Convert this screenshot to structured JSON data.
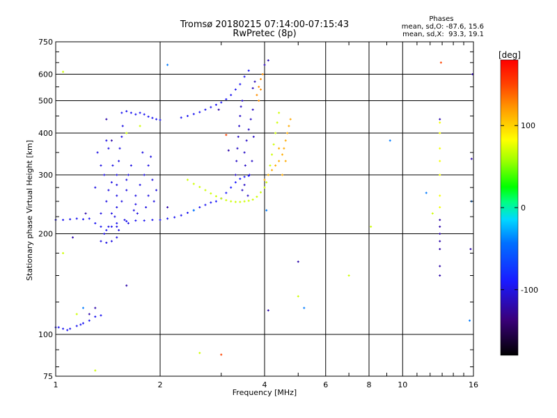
{
  "chart_data": {
    "type": "scatter",
    "title": "Tromsø 20180215 07:14:00-07:15:43",
    "subtitle": "RwPretec (8p)",
    "xlabel": "Frequency [MHz]",
    "ylabel": "Stationary phase Virtual Height [km]",
    "xscale": "log",
    "yscale": "log",
    "xlim": [
      1,
      16
    ],
    "ylim": [
      75,
      750
    ],
    "xticks": [
      1,
      2,
      4,
      6,
      8,
      10,
      16
    ],
    "yticks": [
      75,
      100,
      200,
      300,
      400,
      500,
      600,
      750
    ],
    "grid": true,
    "stats": {
      "heading": "Phases",
      "line1": "mean, sd,O: -87.6, 15.6",
      "line2": "mean, sd,X:  93.3, 19.1"
    },
    "colorbar": {
      "label": "[deg]",
      "range": [
        -180,
        180
      ],
      "ticks": [
        -100,
        0,
        100
      ],
      "tick_labels": [
        "-100",
        "0",
        "100"
      ]
    },
    "series": [
      {
        "color_deg": -95,
        "points": [
          [
            1.0,
            105
          ],
          [
            1.05,
            104
          ],
          [
            1.1,
            104
          ],
          [
            1.15,
            106
          ],
          [
            1.2,
            108
          ],
          [
            1.25,
            110
          ],
          [
            1.3,
            113
          ],
          [
            1.35,
            114
          ],
          [
            1.02,
            105
          ],
          [
            1.08,
            103
          ],
          [
            1.18,
            107
          ]
        ]
      },
      {
        "color_deg": -95,
        "points": [
          [
            1.0,
            220
          ],
          [
            1.05,
            220
          ],
          [
            1.1,
            221
          ],
          [
            1.15,
            222
          ],
          [
            1.2,
            221
          ],
          [
            1.25,
            222
          ],
          [
            1.3,
            215
          ],
          [
            1.35,
            210
          ],
          [
            1.4,
            205
          ],
          [
            1.45,
            210
          ],
          [
            1.5,
            215
          ],
          [
            1.6,
            218
          ],
          [
            1.7,
            219
          ],
          [
            1.8,
            219
          ],
          [
            1.9,
            220
          ],
          [
            2.0,
            220
          ],
          [
            2.1,
            222
          ],
          [
            2.2,
            224
          ],
          [
            2.3,
            227
          ],
          [
            2.4,
            231
          ],
          [
            2.5,
            235
          ],
          [
            2.6,
            240
          ],
          [
            2.7,
            244
          ],
          [
            2.8,
            248
          ]
        ]
      },
      {
        "color_deg": -100,
        "points": [
          [
            1.35,
            190
          ],
          [
            1.4,
            188
          ],
          [
            1.45,
            190
          ],
          [
            1.5,
            195
          ],
          [
            1.38,
            200
          ],
          [
            1.42,
            210
          ],
          [
            1.48,
            225
          ],
          [
            1.5,
            240
          ],
          [
            1.5,
            260
          ],
          [
            1.5,
            280
          ],
          [
            1.5,
            300
          ],
          [
            1.52,
            330
          ],
          [
            1.53,
            360
          ],
          [
            1.55,
            390
          ],
          [
            1.56,
            420
          ],
          [
            1.4,
            250
          ],
          [
            1.42,
            270
          ],
          [
            1.45,
            285
          ],
          [
            1.38,
            300
          ],
          [
            1.35,
            320
          ],
          [
            1.32,
            350
          ],
          [
            1.4,
            380
          ],
          [
            1.45,
            230
          ],
          [
            1.55,
            250
          ],
          [
            1.6,
            270
          ],
          [
            1.62,
            300
          ],
          [
            1.65,
            320
          ],
          [
            1.7,
            260
          ],
          [
            1.75,
            280
          ],
          [
            1.8,
            300
          ],
          [
            1.85,
            320
          ],
          [
            1.9,
            290
          ],
          [
            1.95,
            270
          ],
          [
            1.72,
            230
          ],
          [
            1.82,
            240
          ],
          [
            1.92,
            250
          ],
          [
            1.78,
            350
          ],
          [
            1.88,
            340
          ],
          [
            1.58,
            220
          ],
          [
            1.68,
            235
          ],
          [
            1.5,
            210
          ],
          [
            1.46,
            320
          ],
          [
            1.6,
            290
          ],
          [
            1.7,
            245
          ],
          [
            1.85,
            260
          ],
          [
            1.35,
            230
          ],
          [
            1.3,
            275
          ],
          [
            1.42,
            360
          ],
          [
            1.52,
            205
          ],
          [
            1.62,
            215
          ]
        ]
      },
      {
        "color_deg": -95,
        "points": [
          [
            1.55,
            460
          ],
          [
            1.6,
            465
          ],
          [
            1.65,
            460
          ],
          [
            1.7,
            455
          ],
          [
            1.75,
            460
          ],
          [
            1.8,
            455
          ],
          [
            1.85,
            448
          ],
          [
            1.9,
            444
          ],
          [
            1.95,
            440
          ],
          [
            2.0,
            438
          ],
          [
            2.3,
            445
          ],
          [
            2.4,
            450
          ],
          [
            2.5,
            456
          ],
          [
            2.6,
            462
          ],
          [
            2.7,
            470
          ],
          [
            2.8,
            478
          ],
          [
            2.9,
            486
          ],
          [
            3.0,
            494
          ],
          [
            3.1,
            505
          ],
          [
            3.2,
            520
          ],
          [
            3.3,
            540
          ],
          [
            3.4,
            560
          ],
          [
            3.5,
            590
          ],
          [
            3.6,
            615
          ]
        ]
      },
      {
        "color_deg": -110,
        "points": [
          [
            3.3,
            300
          ],
          [
            3.32,
            330
          ],
          [
            3.34,
            360
          ],
          [
            3.36,
            390
          ],
          [
            3.38,
            420
          ],
          [
            3.4,
            450
          ],
          [
            3.42,
            480
          ],
          [
            3.45,
            500
          ],
          [
            3.5,
            350
          ],
          [
            3.55,
            380
          ],
          [
            3.6,
            410
          ],
          [
            3.65,
            440
          ],
          [
            3.7,
            470
          ],
          [
            3.52,
            320
          ],
          [
            3.62,
            300
          ],
          [
            3.5,
            280
          ],
          [
            3.58,
            260
          ],
          [
            3.45,
            270
          ],
          [
            3.68,
            330
          ],
          [
            3.72,
            390
          ]
        ]
      },
      {
        "color_deg": -90,
        "points": [
          [
            2.9,
            250
          ],
          [
            3.0,
            255
          ],
          [
            3.1,
            265
          ],
          [
            3.2,
            275
          ],
          [
            3.3,
            285
          ],
          [
            3.4,
            292
          ],
          [
            3.5,
            296
          ],
          [
            3.6,
            298
          ]
        ]
      },
      {
        "color_deg": 70,
        "points": [
          [
            2.4,
            290
          ],
          [
            2.5,
            282
          ],
          [
            2.6,
            276
          ],
          [
            2.7,
            270
          ],
          [
            2.8,
            264
          ],
          [
            2.9,
            259
          ],
          [
            3.0,
            255
          ],
          [
            3.1,
            252
          ],
          [
            3.2,
            250
          ],
          [
            3.3,
            249
          ],
          [
            3.4,
            249
          ],
          [
            3.5,
            250
          ],
          [
            3.6,
            251
          ],
          [
            3.7,
            253
          ],
          [
            3.8,
            258
          ],
          [
            3.9,
            266
          ],
          [
            4.0,
            275
          ],
          [
            4.05,
            285
          ],
          [
            4.1,
            300
          ],
          [
            4.15,
            320
          ],
          [
            4.2,
            345
          ],
          [
            4.25,
            370
          ],
          [
            4.3,
            400
          ],
          [
            4.35,
            430
          ],
          [
            4.4,
            460
          ]
        ]
      },
      {
        "color_deg": 115,
        "points": [
          [
            4.0,
            290
          ],
          [
            4.1,
            300
          ],
          [
            4.2,
            310
          ],
          [
            4.3,
            320
          ],
          [
            4.4,
            330
          ],
          [
            4.5,
            345
          ],
          [
            4.55,
            360
          ],
          [
            4.6,
            380
          ],
          [
            4.65,
            400
          ],
          [
            4.7,
            420
          ],
          [
            4.75,
            440
          ],
          [
            4.4,
            360
          ],
          [
            4.5,
            300
          ],
          [
            4.6,
            330
          ]
        ]
      },
      {
        "color_deg": 125,
        "points": [
          [
            3.8,
            520
          ],
          [
            3.85,
            550
          ],
          [
            3.9,
            580
          ],
          [
            3.95,
            600
          ],
          [
            3.85,
            500
          ],
          [
            3.9,
            540
          ]
        ]
      },
      {
        "color_deg": -115,
        "points": [
          [
            4.0,
            640
          ],
          [
            4.1,
            660
          ],
          [
            3.7,
            545
          ],
          [
            3.75,
            570
          ]
        ]
      },
      {
        "color_deg": 80,
        "points": [
          [
            12.8,
            300
          ],
          [
            12.8,
            330
          ],
          [
            12.8,
            360
          ],
          [
            12.8,
            400
          ],
          [
            12.8,
            430
          ],
          [
            12.8,
            260
          ],
          [
            12.8,
            240
          ]
        ]
      },
      {
        "color_deg": -120,
        "points": [
          [
            12.8,
            440
          ],
          [
            12.8,
            220
          ],
          [
            12.8,
            210
          ],
          [
            12.8,
            200
          ],
          [
            12.8,
            190
          ],
          [
            12.8,
            180
          ],
          [
            12.8,
            160
          ],
          [
            12.8,
            150
          ]
        ]
      },
      {
        "color_deg": 70,
        "points": [
          [
            1.05,
            610
          ],
          [
            1.05,
            175
          ],
          [
            1.15,
            115
          ],
          [
            1.6,
            400
          ],
          [
            1.75,
            420
          ],
          [
            2.6,
            88
          ],
          [
            5.0,
            130
          ],
          [
            7.0,
            150
          ],
          [
            8.1,
            210
          ],
          [
            12.2,
            230
          ],
          [
            1.3,
            78
          ]
        ]
      },
      {
        "color_deg": 150,
        "points": [
          [
            3.0,
            87
          ],
          [
            12.9,
            650
          ],
          [
            3.1,
            395
          ]
        ]
      },
      {
        "color_deg": -40,
        "points": [
          [
            1.2,
            120
          ],
          [
            2.1,
            640
          ],
          [
            4.05,
            235
          ],
          [
            5.2,
            120
          ],
          [
            9.2,
            380
          ],
          [
            11.7,
            265
          ],
          [
            15.6,
            110
          ],
          [
            15.8,
            250
          ],
          [
            2.5,
            235
          ]
        ]
      },
      {
        "color_deg": -120,
        "points": [
          [
            1.3,
            120
          ],
          [
            1.25,
            115
          ],
          [
            2.1,
            240
          ],
          [
            4.1,
            118
          ],
          [
            5.0,
            165
          ],
          [
            15.9,
            600
          ],
          [
            15.8,
            335
          ],
          [
            15.7,
            180
          ],
          [
            1.6,
            140
          ],
          [
            1.45,
            380
          ],
          [
            1.4,
            440
          ],
          [
            1.22,
            230
          ],
          [
            1.12,
            195
          ],
          [
            3.15,
            355
          ],
          [
            2.95,
            470
          ]
        ]
      }
    ]
  }
}
